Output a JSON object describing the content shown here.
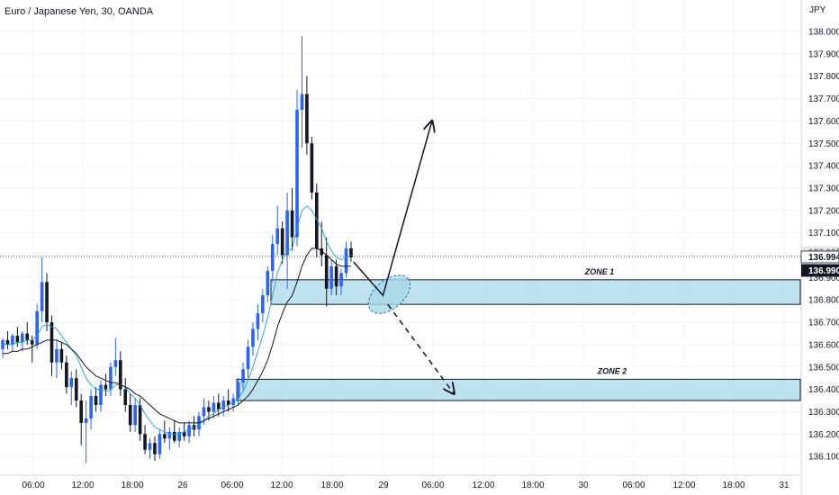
{
  "header": {
    "title": "Euro / Japanese Yen, 30, OANDA"
  },
  "colors": {
    "up": "#2962ff",
    "down": "#131722",
    "ma_fast": "#26a0c8",
    "ma_slow": "#131722",
    "zone_fill": "#a8d8e8",
    "zone_stroke": "#131722",
    "grid": "#f0f3fa",
    "axis_border": "#d1d4dc"
  },
  "icons": {
    "path_arrow": "arrow-up-right",
    "path_dashed": "arrow-dashed-down-right"
  },
  "chart_data": {
    "type": "candlestick",
    "symbol": "Euro / Japanese Yen",
    "interval": "30",
    "broker": "OANDA",
    "y_unit": "JPY",
    "ylim": [
      136.03,
      138.08
    ],
    "y_ticks": [
      "138.000",
      "137.900",
      "137.800",
      "137.700",
      "137.600",
      "137.500",
      "137.400",
      "137.300",
      "137.200",
      "137.100",
      "137.000",
      "136.900",
      "136.800",
      "136.700",
      "136.600",
      "136.500",
      "136.400",
      "136.300",
      "136.200",
      "136.100"
    ],
    "x_ticks": [
      "06:00",
      "12:00",
      "18:00",
      "26",
      "06:00",
      "12:00",
      "18:00",
      "29",
      "06:00",
      "12:00",
      "18:00",
      "30",
      "06:00",
      "12:00",
      "18:00",
      "31"
    ],
    "price_labels": {
      "current_upper": "137.015",
      "current": "136.994",
      "last": "136.990"
    },
    "candles": [
      {
        "o": 136.58,
        "h": 136.63,
        "l": 136.54,
        "c": 136.62
      },
      {
        "o": 136.62,
        "h": 136.66,
        "l": 136.58,
        "c": 136.6
      },
      {
        "o": 136.6,
        "h": 136.65,
        "l": 136.57,
        "c": 136.64
      },
      {
        "o": 136.64,
        "h": 136.68,
        "l": 136.59,
        "c": 136.61
      },
      {
        "o": 136.61,
        "h": 136.66,
        "l": 136.57,
        "c": 136.65
      },
      {
        "o": 136.65,
        "h": 136.7,
        "l": 136.6,
        "c": 136.62
      },
      {
        "o": 136.62,
        "h": 136.64,
        "l": 136.52,
        "c": 136.6
      },
      {
        "o": 136.6,
        "h": 136.78,
        "l": 136.58,
        "c": 136.75
      },
      {
        "o": 136.75,
        "h": 136.99,
        "l": 136.7,
        "c": 136.88
      },
      {
        "o": 136.88,
        "h": 136.92,
        "l": 136.66,
        "c": 136.7
      },
      {
        "o": 136.7,
        "h": 136.73,
        "l": 136.46,
        "c": 136.52
      },
      {
        "o": 136.52,
        "h": 136.62,
        "l": 136.45,
        "c": 136.58
      },
      {
        "o": 136.58,
        "h": 136.61,
        "l": 136.49,
        "c": 136.52
      },
      {
        "o": 136.52,
        "h": 136.55,
        "l": 136.38,
        "c": 136.41
      },
      {
        "o": 136.41,
        "h": 136.48,
        "l": 136.33,
        "c": 136.45
      },
      {
        "o": 136.45,
        "h": 136.49,
        "l": 136.32,
        "c": 136.35
      },
      {
        "o": 136.35,
        "h": 136.38,
        "l": 136.15,
        "c": 136.25
      },
      {
        "o": 136.25,
        "h": 136.35,
        "l": 136.07,
        "c": 136.27
      },
      {
        "o": 136.27,
        "h": 136.4,
        "l": 136.22,
        "c": 136.37
      },
      {
        "o": 136.37,
        "h": 136.41,
        "l": 136.3,
        "c": 136.33
      },
      {
        "o": 136.33,
        "h": 136.44,
        "l": 136.3,
        "c": 136.42
      },
      {
        "o": 136.42,
        "h": 136.47,
        "l": 136.37,
        "c": 136.4
      },
      {
        "o": 136.4,
        "h": 136.52,
        "l": 136.37,
        "c": 136.5
      },
      {
        "o": 136.5,
        "h": 136.63,
        "l": 136.46,
        "c": 136.53
      },
      {
        "o": 136.53,
        "h": 136.57,
        "l": 136.37,
        "c": 136.4
      },
      {
        "o": 136.4,
        "h": 136.45,
        "l": 136.3,
        "c": 136.33
      },
      {
        "o": 136.33,
        "h": 136.38,
        "l": 136.21,
        "c": 136.24
      },
      {
        "o": 136.24,
        "h": 136.36,
        "l": 136.21,
        "c": 136.33
      },
      {
        "o": 136.33,
        "h": 136.36,
        "l": 136.17,
        "c": 136.2
      },
      {
        "o": 136.2,
        "h": 136.24,
        "l": 136.11,
        "c": 136.13
      },
      {
        "o": 136.13,
        "h": 136.18,
        "l": 136.09,
        "c": 136.16
      },
      {
        "o": 136.16,
        "h": 136.19,
        "l": 136.08,
        "c": 136.11
      },
      {
        "o": 136.11,
        "h": 136.22,
        "l": 136.09,
        "c": 136.2
      },
      {
        "o": 136.2,
        "h": 136.26,
        "l": 136.16,
        "c": 136.18
      },
      {
        "o": 136.18,
        "h": 136.23,
        "l": 136.13,
        "c": 136.21
      },
      {
        "o": 136.21,
        "h": 136.26,
        "l": 136.16,
        "c": 136.17
      },
      {
        "o": 136.17,
        "h": 136.23,
        "l": 136.14,
        "c": 136.21
      },
      {
        "o": 136.21,
        "h": 136.25,
        "l": 136.17,
        "c": 136.19
      },
      {
        "o": 136.19,
        "h": 136.26,
        "l": 136.16,
        "c": 136.24
      },
      {
        "o": 136.24,
        "h": 136.28,
        "l": 136.19,
        "c": 136.22
      },
      {
        "o": 136.22,
        "h": 136.3,
        "l": 136.19,
        "c": 136.28
      },
      {
        "o": 136.28,
        "h": 136.36,
        "l": 136.24,
        "c": 136.32
      },
      {
        "o": 136.32,
        "h": 136.35,
        "l": 136.26,
        "c": 136.3
      },
      {
        "o": 136.3,
        "h": 136.37,
        "l": 136.27,
        "c": 136.34
      },
      {
        "o": 136.34,
        "h": 136.38,
        "l": 136.28,
        "c": 136.31
      },
      {
        "o": 136.31,
        "h": 136.37,
        "l": 136.28,
        "c": 136.35
      },
      {
        "o": 136.35,
        "h": 136.4,
        "l": 136.3,
        "c": 136.33
      },
      {
        "o": 136.33,
        "h": 136.38,
        "l": 136.3,
        "c": 136.36
      },
      {
        "o": 136.36,
        "h": 136.45,
        "l": 136.33,
        "c": 136.43
      },
      {
        "o": 136.43,
        "h": 136.52,
        "l": 136.4,
        "c": 136.49
      },
      {
        "o": 136.49,
        "h": 136.62,
        "l": 136.45,
        "c": 136.59
      },
      {
        "o": 136.59,
        "h": 136.7,
        "l": 136.55,
        "c": 136.67
      },
      {
        "o": 136.67,
        "h": 136.78,
        "l": 136.62,
        "c": 136.74
      },
      {
        "o": 136.74,
        "h": 136.85,
        "l": 136.7,
        "c": 136.82
      },
      {
        "o": 136.82,
        "h": 136.95,
        "l": 136.79,
        "c": 136.93
      },
      {
        "o": 136.93,
        "h": 137.09,
        "l": 136.88,
        "c": 137.05
      },
      {
        "o": 137.05,
        "h": 137.22,
        "l": 137.0,
        "c": 137.12
      },
      {
        "o": 137.12,
        "h": 137.15,
        "l": 136.96,
        "c": 137.0
      },
      {
        "o": 137.0,
        "h": 137.28,
        "l": 136.85,
        "c": 137.2
      },
      {
        "o": 137.2,
        "h": 137.3,
        "l": 137.02,
        "c": 137.08
      },
      {
        "o": 137.08,
        "h": 137.74,
        "l": 137.04,
        "c": 137.65
      },
      {
        "o": 137.65,
        "h": 137.98,
        "l": 137.48,
        "c": 137.72
      },
      {
        "o": 137.72,
        "h": 137.8,
        "l": 137.45,
        "c": 137.5
      },
      {
        "o": 137.5,
        "h": 137.53,
        "l": 137.25,
        "c": 137.28
      },
      {
        "o": 137.28,
        "h": 137.32,
        "l": 136.99,
        "c": 137.03
      },
      {
        "o": 137.03,
        "h": 137.15,
        "l": 136.95,
        "c": 137.0
      },
      {
        "o": 137.0,
        "h": 137.08,
        "l": 136.77,
        "c": 136.85
      },
      {
        "o": 136.85,
        "h": 136.98,
        "l": 136.82,
        "c": 136.95
      },
      {
        "o": 136.95,
        "h": 136.98,
        "l": 136.82,
        "c": 136.86
      },
      {
        "o": 136.86,
        "h": 136.94,
        "l": 136.82,
        "c": 136.92
      },
      {
        "o": 136.92,
        "h": 137.06,
        "l": 136.9,
        "c": 137.03
      },
      {
        "o": 137.03,
        "h": 137.06,
        "l": 136.97,
        "c": 136.99
      }
    ],
    "ma_fast": [
      136.6,
      136.6,
      136.6,
      136.61,
      136.61,
      136.62,
      136.62,
      136.64,
      136.68,
      136.69,
      136.68,
      136.67,
      136.64,
      136.61,
      136.58,
      136.55,
      136.5,
      136.45,
      136.42,
      136.4,
      136.4,
      136.39,
      136.4,
      136.42,
      136.42,
      136.41,
      136.38,
      136.36,
      136.33,
      136.29,
      136.26,
      136.23,
      136.22,
      136.21,
      136.2,
      136.2,
      136.2,
      136.21,
      136.22,
      136.23,
      136.24,
      136.26,
      136.28,
      136.29,
      136.31,
      136.32,
      136.33,
      136.34,
      136.36,
      136.39,
      136.44,
      136.5,
      136.57,
      136.64,
      136.72,
      136.82,
      136.92,
      136.98,
      137.02,
      137.03,
      137.12,
      137.2,
      137.22,
      137.2,
      137.16,
      137.12,
      137.06,
      137.02,
      136.99,
      136.98,
      136.99,
      137.0
    ],
    "ma_slow": [
      136.56,
      136.56,
      136.57,
      136.57,
      136.58,
      136.58,
      136.59,
      136.6,
      136.61,
      136.62,
      136.62,
      136.62,
      136.61,
      136.6,
      136.58,
      136.56,
      136.53,
      136.5,
      136.48,
      136.46,
      136.45,
      136.44,
      136.43,
      136.43,
      136.42,
      136.41,
      136.4,
      136.38,
      136.37,
      136.35,
      136.33,
      136.31,
      136.29,
      136.28,
      136.27,
      136.26,
      136.25,
      136.25,
      136.25,
      136.25,
      136.25,
      136.26,
      136.27,
      136.28,
      136.29,
      136.3,
      136.31,
      136.32,
      136.33,
      136.35,
      136.37,
      136.4,
      136.44,
      136.48,
      136.53,
      136.6,
      136.68,
      136.74,
      136.79,
      136.82,
      136.88,
      136.95,
      137.0,
      137.03,
      137.03,
      137.02,
      137.0,
      136.98,
      136.96,
      136.95,
      136.95,
      136.95
    ]
  },
  "annotations": {
    "zones": [
      {
        "label": "ZONE 1",
        "top": 136.89,
        "bottom": 136.78
      },
      {
        "label": "ZONE 2",
        "top": 136.445,
        "bottom": 136.35
      }
    ],
    "projected_path": {
      "up": [
        {
          "idx": 71.5,
          "price": 136.97
        },
        {
          "idx": 77.5,
          "price": 136.82
        },
        {
          "idx": 87.5,
          "price": 137.6
        }
      ],
      "down": [
        {
          "idx": 78.5,
          "price": 136.78
        },
        {
          "idx": 92.0,
          "price": 136.38
        }
      ],
      "ellipse_center": {
        "idx": 78.8,
        "price": 136.825
      }
    }
  }
}
